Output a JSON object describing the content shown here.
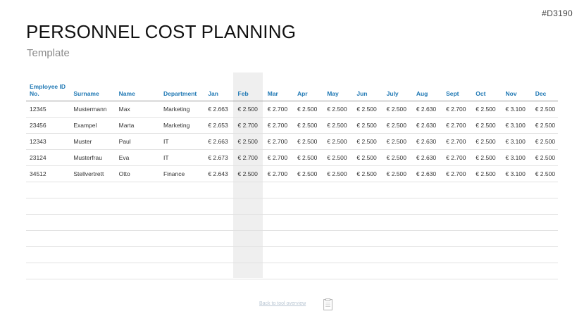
{
  "code": "#D3190",
  "title": "PERSONNEL COST PLANNING",
  "subtitle": "Template",
  "headers": [
    "Employee ID No.",
    "Surname",
    "Name",
    "Department",
    "Jan",
    "Feb",
    "Mar",
    "Apr",
    "May",
    "Jun",
    "July",
    "Aug",
    "Sept",
    "Oct",
    "Nov",
    "Dec"
  ],
  "rows": [
    [
      "12345",
      "Mustermann",
      "Max",
      "Marketing",
      "€ 2.663",
      "€ 2.500",
      "€ 2.700",
      "€ 2.500",
      "€ 2.500",
      "€ 2.500",
      "€ 2.500",
      "€ 2.630",
      "€ 2.700",
      "€ 2.500",
      "€ 3.100",
      "€ 2.500"
    ],
    [
      "23456",
      "Exampel",
      "Marta",
      "Marketing",
      "€ 2.653",
      "€ 2.700",
      "€ 2.700",
      "€ 2.500",
      "€ 2.500",
      "€ 2.500",
      "€ 2.500",
      "€ 2.630",
      "€ 2.700",
      "€ 2.500",
      "€ 3.100",
      "€ 2.500"
    ],
    [
      "12343",
      "Muster",
      "Paul",
      "IT",
      "€ 2.663",
      "€ 2.500",
      "€ 2.700",
      "€ 2.500",
      "€ 2.500",
      "€ 2.500",
      "€ 2.500",
      "€ 2.630",
      "€ 2.700",
      "€ 2.500",
      "€ 3.100",
      "€ 2.500"
    ],
    [
      "23124",
      "Musterfrau",
      "Eva",
      "IT",
      "€ 2.673",
      "€ 2.700",
      "€ 2.700",
      "€ 2.500",
      "€ 2.500",
      "€ 2.500",
      "€ 2.500",
      "€ 2.630",
      "€ 2.700",
      "€ 2.500",
      "€ 3.100",
      "€ 2.500"
    ],
    [
      "34512",
      "Stellvertrett",
      "Otto",
      "Finance",
      "€ 2.643",
      "€ 2.500",
      "€ 2.700",
      "€ 2.500",
      "€ 2.500",
      "€ 2.500",
      "€ 2.500",
      "€ 2.630",
      "€ 2.700",
      "€ 2.500",
      "€ 3.100",
      "€ 2.500"
    ]
  ],
  "empty_rows": 6,
  "footer_link": "Back to tool overview",
  "colors": {
    "accent": "#1f78b4",
    "highlight_column": "#efefef"
  },
  "icons": {
    "footer": "clipboard-icon"
  }
}
